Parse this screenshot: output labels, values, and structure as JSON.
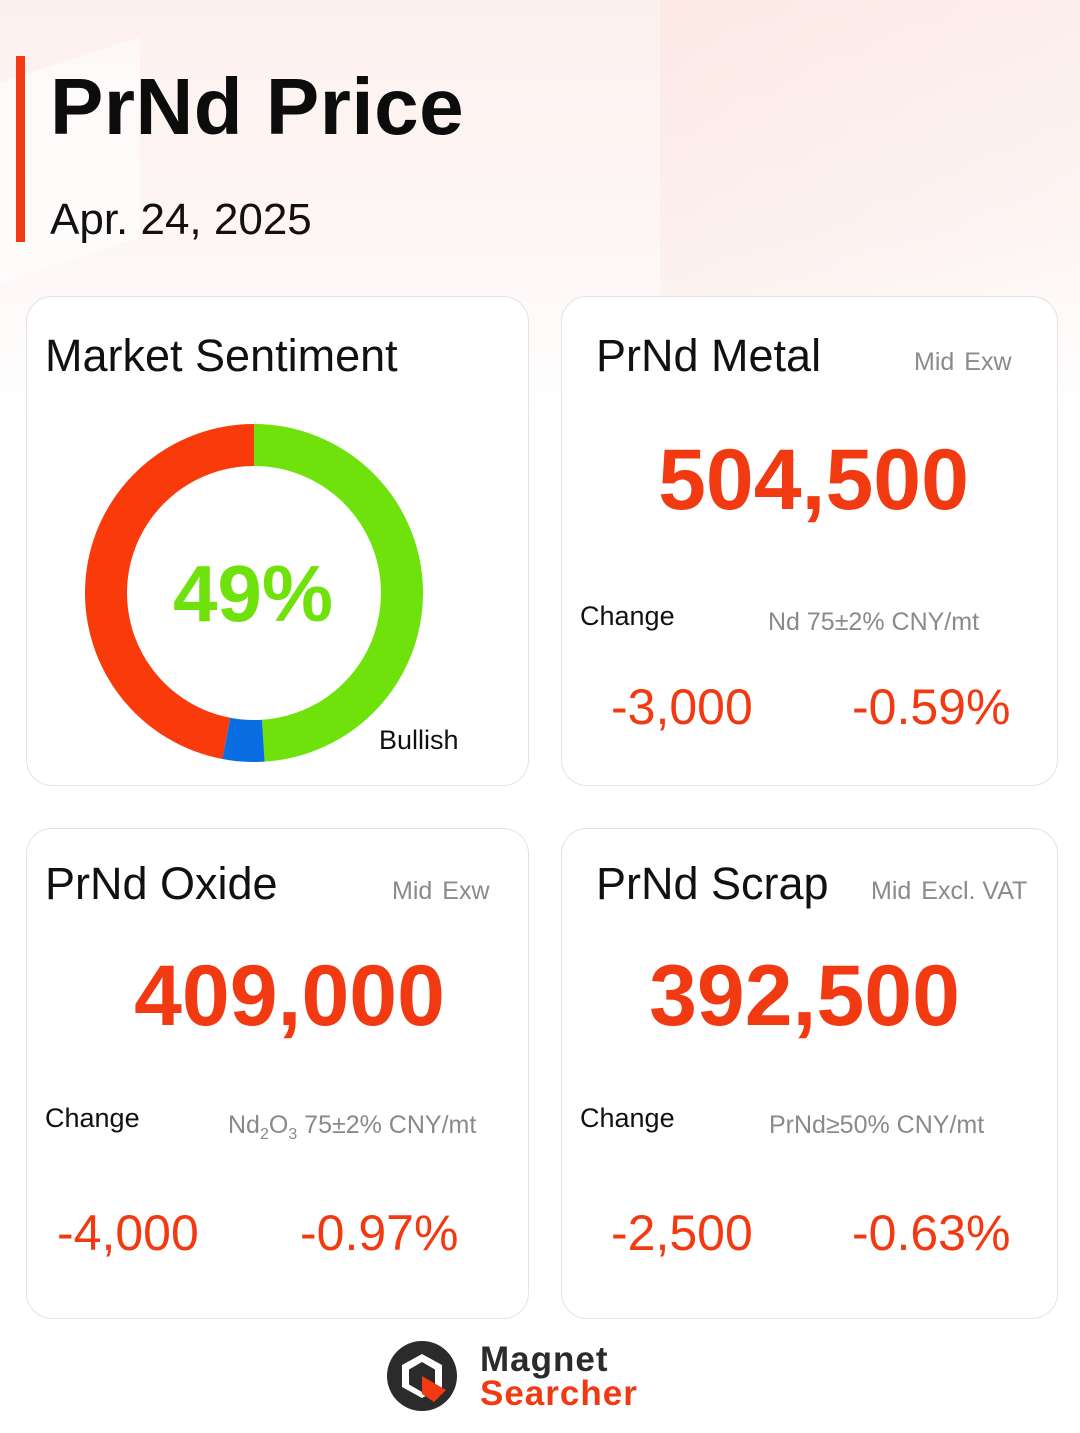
{
  "header": {
    "title": "PrNd Price",
    "date": "Apr. 24, 2025"
  },
  "sentiment": {
    "title": "Market Sentiment",
    "percent_label": "49%",
    "bullish_label": "Bullish",
    "segments": [
      {
        "name": "bullish",
        "fraction": 0.49,
        "color": "#6ee20a"
      },
      {
        "name": "neutral",
        "fraction": 0.04,
        "color": "#0a6ee2"
      },
      {
        "name": "bearish",
        "fraction": 0.47,
        "color": "#f93a0a"
      }
    ]
  },
  "metal": {
    "title": "PrNd Metal",
    "meta_mid": "Mid",
    "meta_terms": "Exw",
    "price": "504,500",
    "change_label": "Change",
    "spec": "Nd 75±2% CNY/mt",
    "change_abs": "-3,000",
    "change_pct": "-0.59%"
  },
  "oxide": {
    "title": "PrNd Oxide",
    "meta_mid": "Mid",
    "meta_terms": "Exw",
    "price": "409,000",
    "change_label": "Change",
    "spec_a": "Nd",
    "spec_sub1": "2",
    "spec_b": "O",
    "spec_sub2": "3",
    "spec_c": " 75±2% CNY/mt",
    "change_abs": "-4,000",
    "change_pct": "-0.97%"
  },
  "scrap": {
    "title": "PrNd Scrap",
    "meta_mid": "Mid",
    "meta_terms": "Excl. VAT",
    "price": "392,500",
    "change_label": "Change",
    "spec": "PrNd≥50% CNY/mt",
    "change_abs": "-2,500",
    "change_pct": "-0.63%"
  },
  "brand": {
    "line1": "Magnet",
    "line2": "Searcher",
    "accent": "#f23a12"
  }
}
